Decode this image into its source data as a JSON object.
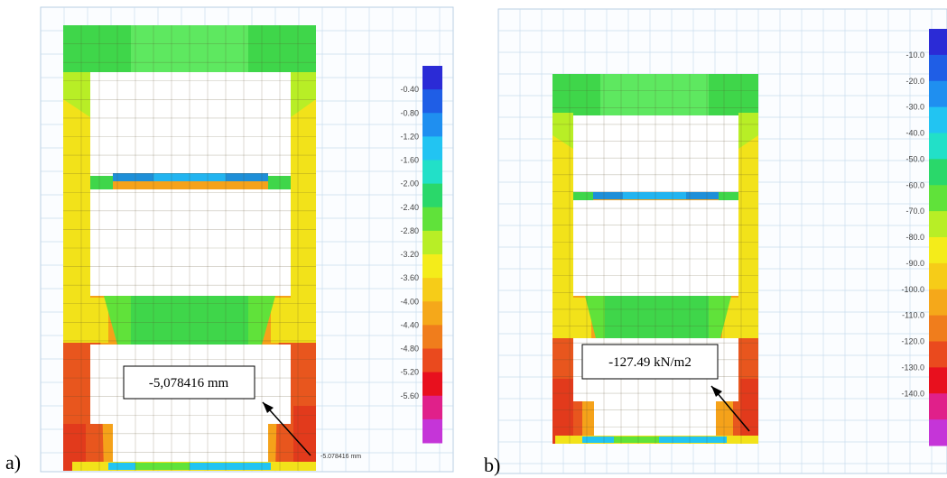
{
  "panels": [
    {
      "label": "a)",
      "legend_ticks": [
        "-0.40",
        "-0.80",
        "-1.20",
        "-1.60",
        "-2.00",
        "-2.40",
        "-2.80",
        "-3.20",
        "-3.60",
        "-4.00",
        "-4.40",
        "-4.80",
        "-5.20",
        "-5.60"
      ],
      "callout": "-5,078416 mm",
      "small_annotation": "-5.078416 mm"
    },
    {
      "label": "b)",
      "legend_ticks": [
        "-10.0",
        "-20.0",
        "-30.0",
        "-40.0",
        "-50.0",
        "-60.0",
        "-70.0",
        "-80.0",
        "-90.0",
        "-100.0",
        "-110.0",
        "-120.0",
        "-130.0",
        "-140.0"
      ],
      "callout": "-127.49 kN/m2"
    }
  ],
  "colors": {
    "grid": "#c9dcee",
    "top_green": "#3fd64a",
    "frame_yellow": "#f2e21a",
    "frame_orange": "#f5a21a",
    "frame_red": "#e4331c",
    "beam_blue": "#1e8fd8",
    "legend": [
      "#2b2bd6",
      "#1f5ee6",
      "#1f8ff0",
      "#22c4f2",
      "#22e0c8",
      "#2ad86a",
      "#60e23a",
      "#b8ee26",
      "#f4ec1a",
      "#f6cc18",
      "#f5a81a",
      "#f07d1c",
      "#ea4a1e",
      "#e8101e",
      "#e0208a",
      "#c535d8"
    ]
  }
}
